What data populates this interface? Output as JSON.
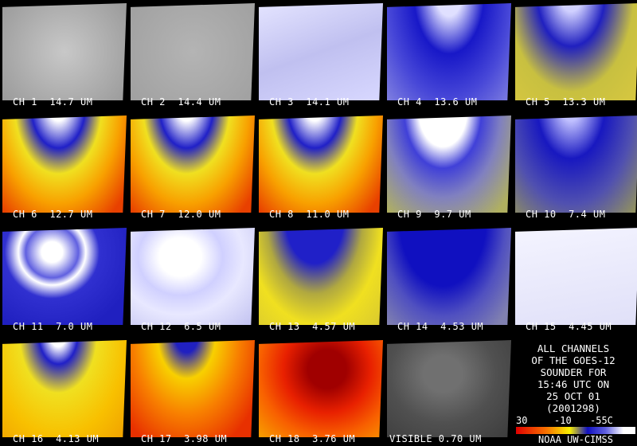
{
  "panels": [
    {
      "label": "CH 1  14.7 UM"
    },
    {
      "label": "CH 2  14.4 UM"
    },
    {
      "label": "CH 3  14.1 UM"
    },
    {
      "label": "CH 4  13.6 UM"
    },
    {
      "label": "CH 5  13.3 UM"
    },
    {
      "label": "CH 6  12.7 UM"
    },
    {
      "label": "CH 7  12.0 UM"
    },
    {
      "label": "CH 8  11.0 UM"
    },
    {
      "label": "CH 9  9.7 UM"
    },
    {
      "label": "CH 10  7.4 UM"
    },
    {
      "label": "CH 11  7.0 UM"
    },
    {
      "label": "CH 12  6.5 UM"
    },
    {
      "label": "CH 13  4.57 UM"
    },
    {
      "label": "CH 14  4.53 UM"
    },
    {
      "label": "CH 15  4.45 UM"
    },
    {
      "label": "CH 16  4.13 UM"
    },
    {
      "label": "CH 17  3.98 UM"
    },
    {
      "label": "CH 18  3.76 UM"
    },
    {
      "label": "VISIBLE 0.70 UM"
    }
  ],
  "info": {
    "lines": [
      "ALL CHANNELS",
      "OF THE GOES-12",
      "SOUNDER FOR",
      "15:46 UTC ON",
      "25 OCT 01",
      "(2001298)"
    ]
  },
  "colorbar": {
    "labels": [
      "30",
      "-10",
      "-55C"
    ]
  },
  "credit": "NOAA UW-CIMSS"
}
